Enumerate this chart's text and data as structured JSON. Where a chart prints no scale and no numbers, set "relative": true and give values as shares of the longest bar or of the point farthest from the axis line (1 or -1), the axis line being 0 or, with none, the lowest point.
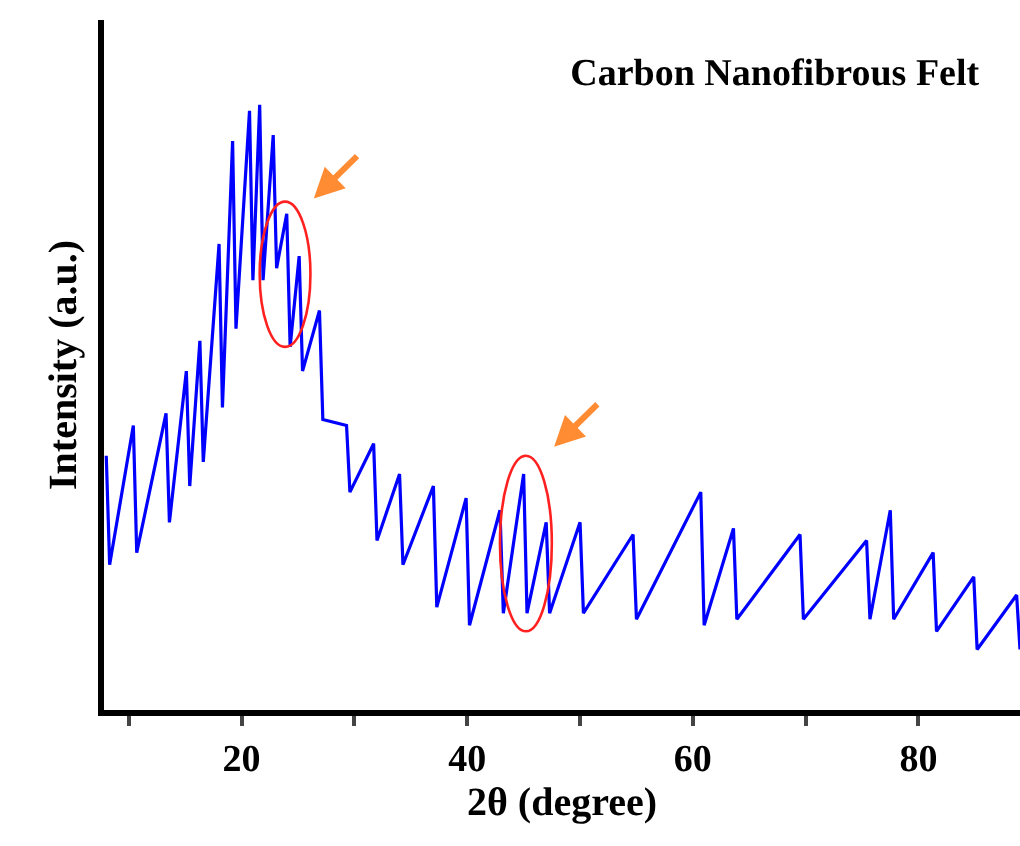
{
  "chart_data": {
    "type": "line",
    "title": "Carbon Nanofibrous Felt",
    "xlabel": "2θ (degree)",
    "ylabel": "Intensity (a.u.)",
    "relative": true,
    "xlim": [
      7.8,
      89
    ],
    "xticks": [
      {
        "value": 10,
        "label": null
      },
      20,
      {
        "value": 30,
        "label": null
      },
      40,
      {
        "value": 50,
        "label": null
      },
      60,
      {
        "value": 70,
        "label": null
      },
      80
    ],
    "series": [
      {
        "color": "#0000ff",
        "x": [
          8.0,
          8.3,
          10.4,
          10.7,
          13.3,
          13.6,
          15.1,
          15.4,
          16.3,
          16.6,
          18.0,
          18.3,
          19.2,
          19.5,
          20.7,
          21.0,
          21.6,
          21.9,
          22.8,
          23.1,
          24.0,
          24.3,
          25.1,
          25.4,
          26.9,
          27.2,
          29.3,
          29.6,
          31.7,
          32.0,
          34.0,
          34.3,
          37.0,
          37.3,
          39.9,
          40.2,
          42.9,
          43.2,
          45.0,
          45.3,
          47.0,
          47.3,
          50.0,
          50.3,
          54.7,
          55.0,
          60.7,
          61.0,
          63.6,
          63.9,
          69.5,
          69.8,
          75.4,
          75.7,
          77.5,
          77.8,
          81.3,
          81.6,
          84.9,
          85.2,
          88.7,
          89.0
        ],
        "values": [
          0.42,
          0.24,
          0.47,
          0.26,
          0.49,
          0.31,
          0.56,
          0.37,
          0.61,
          0.41,
          0.77,
          0.5,
          0.94,
          0.63,
          0.99,
          0.71,
          1.0,
          0.71,
          0.95,
          0.73,
          0.82,
          0.6,
          0.75,
          0.56,
          0.66,
          0.48,
          0.47,
          0.36,
          0.44,
          0.28,
          0.39,
          0.24,
          0.37,
          0.17,
          0.35,
          0.14,
          0.33,
          0.16,
          0.39,
          0.16,
          0.31,
          0.16,
          0.31,
          0.16,
          0.29,
          0.15,
          0.36,
          0.14,
          0.3,
          0.15,
          0.29,
          0.15,
          0.28,
          0.15,
          0.33,
          0.15,
          0.26,
          0.13,
          0.22,
          0.1,
          0.19,
          0.1
        ]
      }
    ]
  }
}
